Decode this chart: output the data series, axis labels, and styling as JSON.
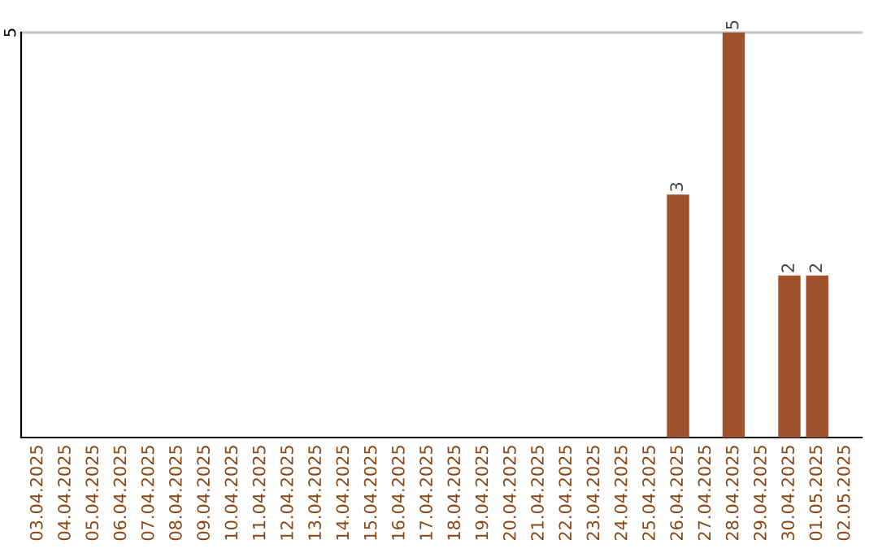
{
  "chart_data": {
    "type": "bar",
    "ylim": [
      0,
      5
    ],
    "yticks": [
      5
    ],
    "ref_lines": [
      {
        "axis": "y",
        "value": 5,
        "color": "#c4c4c4"
      }
    ],
    "categories": [
      "03.04.2025",
      "04.04.2025",
      "05.04.2025",
      "06.04.2025",
      "07.04.2025",
      "08.04.2025",
      "09.04.2025",
      "10.04.2025",
      "11.04.2025",
      "12.04.2025",
      "13.04.2025",
      "14.04.2025",
      "15.04.2025",
      "16.04.2025",
      "17.04.2025",
      "18.04.2025",
      "19.04.2025",
      "20.04.2025",
      "21.04.2025",
      "22.04.2025",
      "23.04.2025",
      "24.04.2025",
      "25.04.2025",
      "26.04.2025",
      "27.04.2025",
      "28.04.2025",
      "29.04.2025",
      "30.04.2025",
      "01.05.2025",
      "02.05.2025"
    ],
    "values": [
      null,
      null,
      null,
      null,
      null,
      null,
      null,
      null,
      null,
      null,
      null,
      null,
      null,
      null,
      null,
      null,
      null,
      null,
      null,
      null,
      null,
      null,
      null,
      3,
      null,
      5,
      null,
      2,
      2,
      null
    ],
    "data_labels": true,
    "color": "#a0522d"
  }
}
